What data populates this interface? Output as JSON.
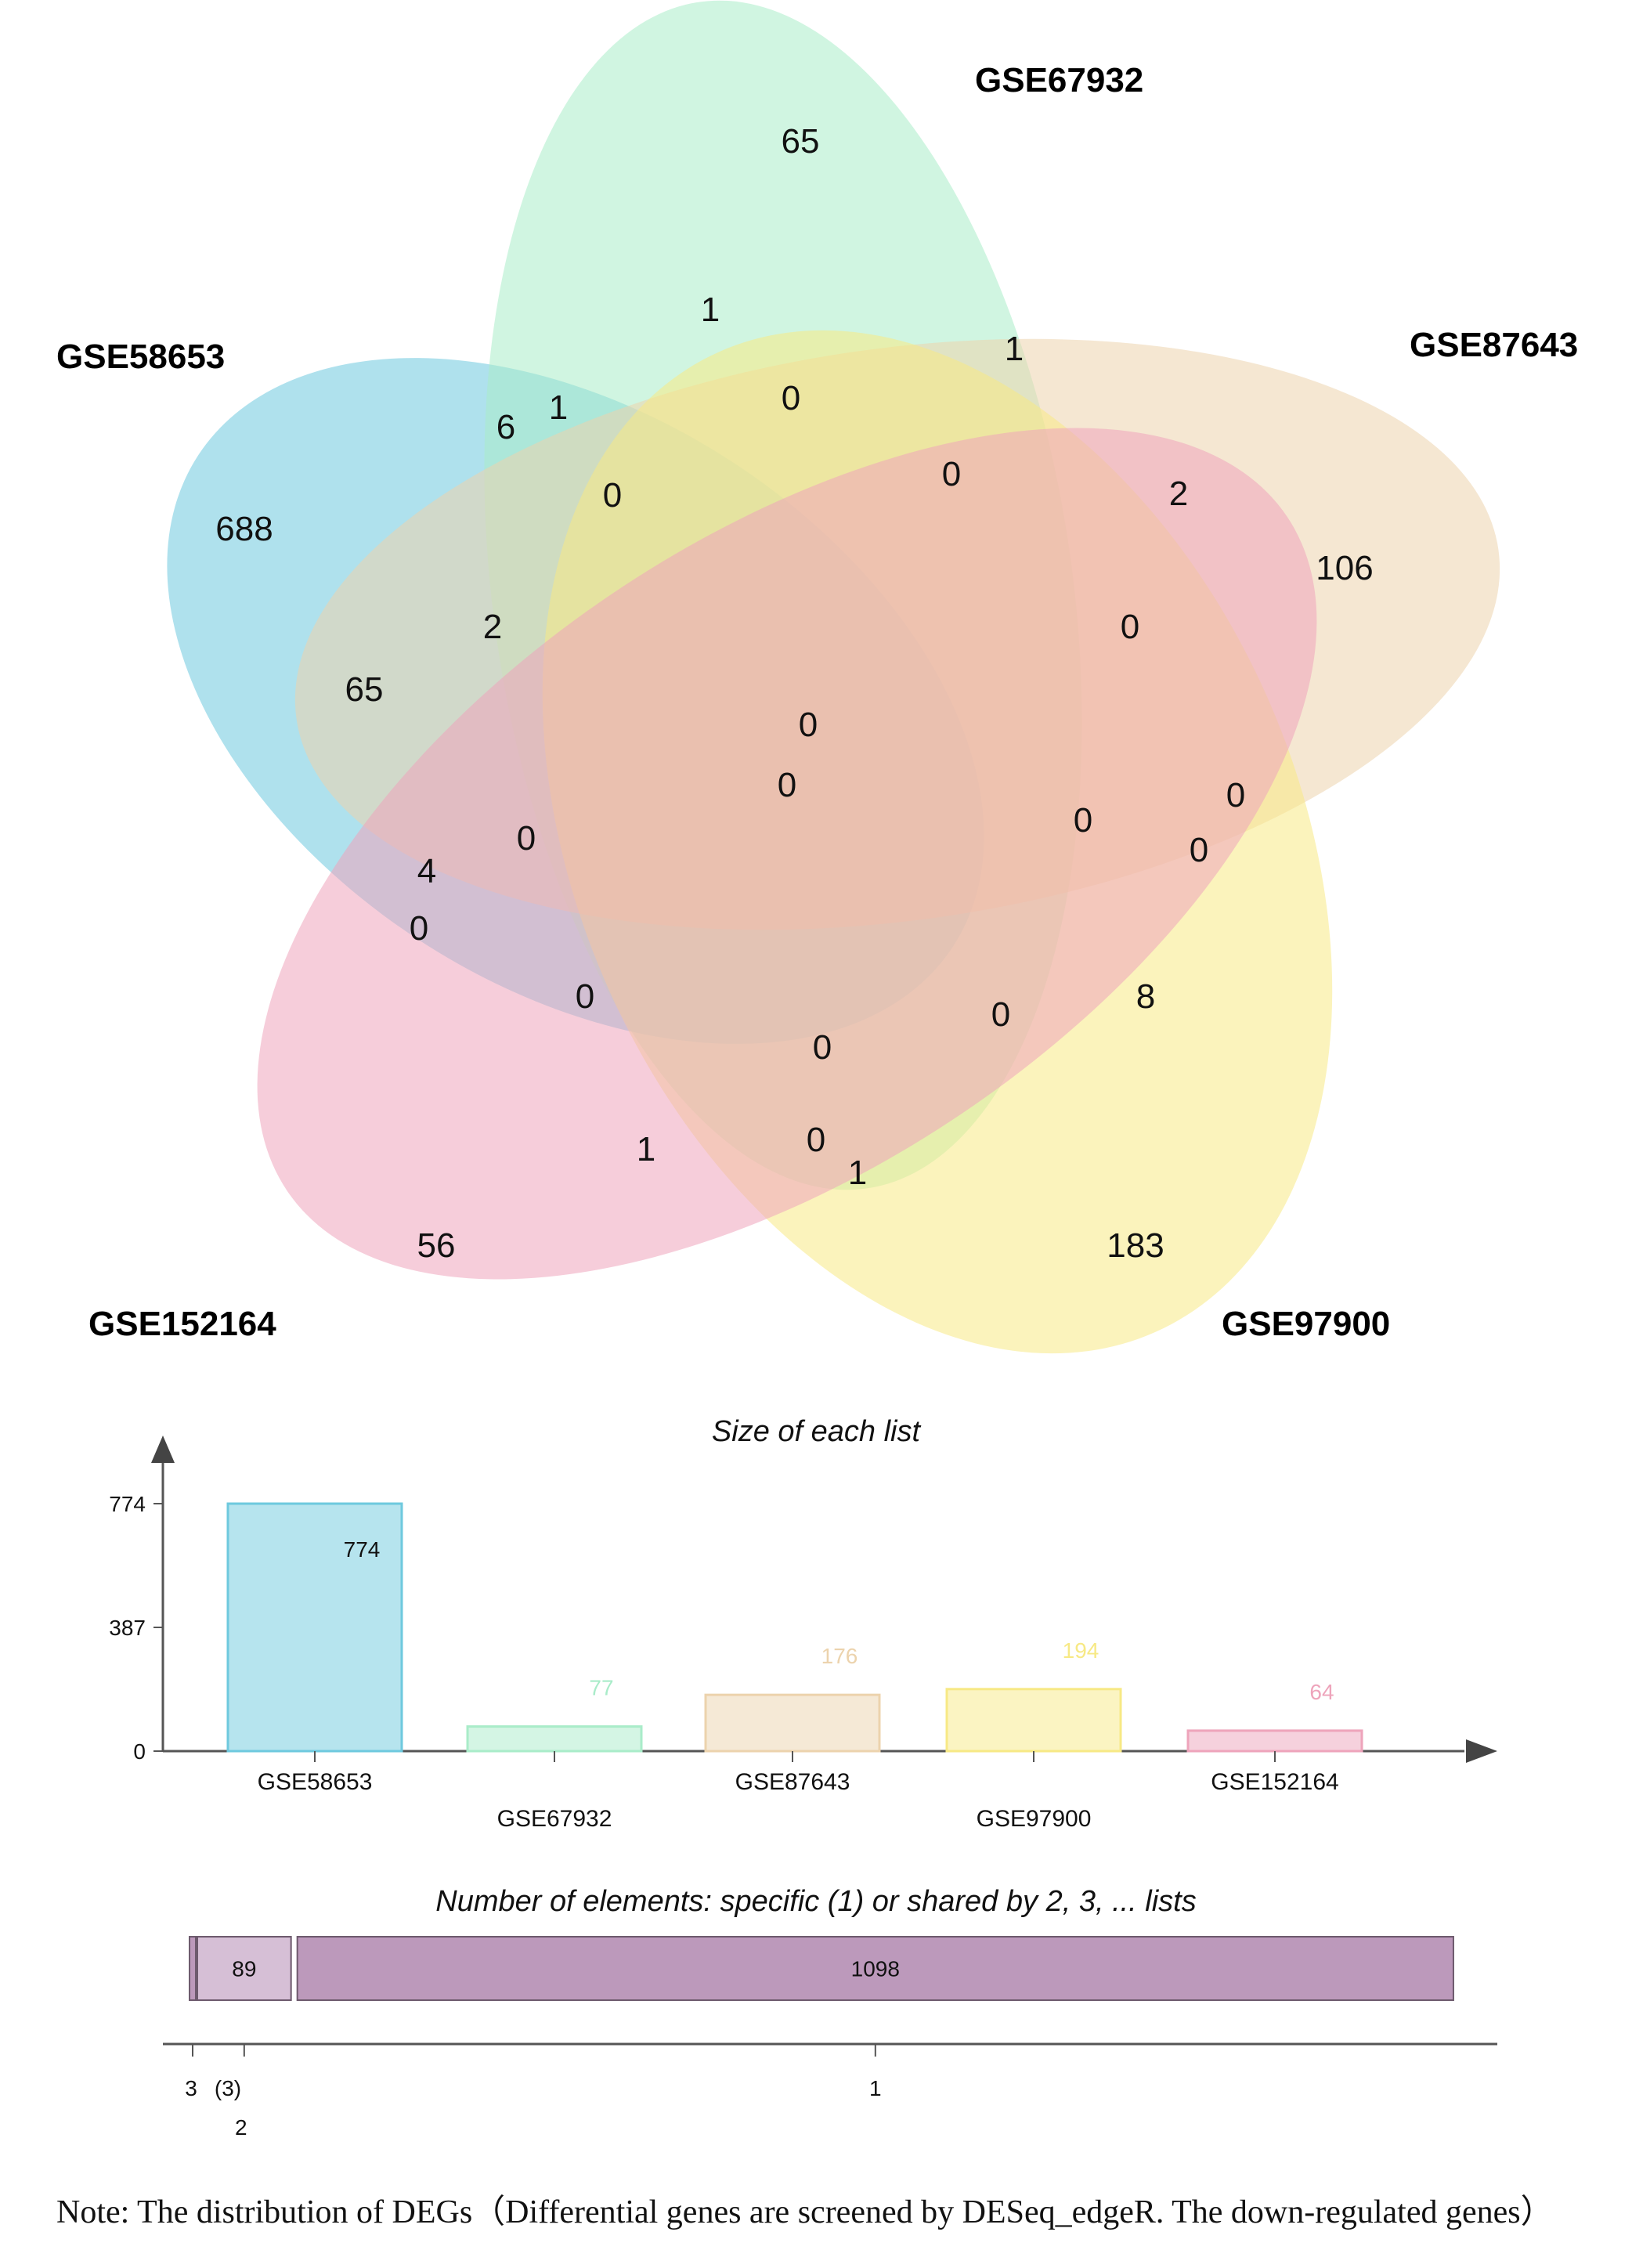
{
  "colors": {
    "GSE58653": "#6ec9de",
    "GSE67932": "#a9ecc9",
    "GSE87643": "#ecd3ad",
    "GSE97900": "#f7e985",
    "GSE152164": "#eea4bb",
    "shared": "#bc99bb",
    "shared_light": "#d6bfd6"
  },
  "chart_data": [
    {
      "type": "venn",
      "sets": [
        {
          "key": "GSE58653",
          "label": "GSE58653"
        },
        {
          "key": "GSE67932",
          "label": "GSE67932"
        },
        {
          "key": "GSE87643",
          "label": "GSE87643"
        },
        {
          "key": "GSE97900",
          "label": "GSE97900"
        },
        {
          "key": "GSE152164",
          "label": "GSE152164"
        }
      ],
      "region_counts": [
        "65",
        "1",
        "1",
        "0",
        "6",
        "1",
        "0",
        "688",
        "0",
        "2",
        "106",
        "2",
        "0",
        "65",
        "0",
        "0",
        "0",
        "0",
        "0",
        "4",
        "0",
        "0",
        "0",
        "8",
        "0",
        "1",
        "0",
        "1",
        "56",
        "183",
        "0"
      ]
    },
    {
      "type": "bar",
      "title": "Size of each list",
      "categories": [
        "GSE58653",
        "GSE67932",
        "GSE87643",
        "GSE97900",
        "GSE152164"
      ],
      "values": [
        774,
        77,
        176,
        194,
        64
      ],
      "value_labels": [
        "774",
        "77",
        "176",
        "194",
        "64"
      ],
      "ylim": [
        0,
        774
      ],
      "yticks": [
        0,
        387,
        774
      ],
      "ytick_labels": [
        "0",
        "387",
        "774"
      ]
    },
    {
      "type": "bar",
      "orientation": "horizontal-stacked",
      "title": "Number of elements: specific (1) or shared by 2, 3, ... lists",
      "segments": [
        {
          "shared_by": "3",
          "value": 3,
          "value_label": ""
        },
        {
          "shared_by": "2",
          "value": 89,
          "value_label": "89"
        },
        {
          "shared_by": "1",
          "value": 1098,
          "value_label": "1098"
        }
      ],
      "tick_labels": [
        "3",
        "(3)",
        "2",
        "1"
      ]
    }
  ],
  "note": "Note: The distribution of DEGs（Differential genes are screened by DESeq_edgeR. The down-regulated genes）"
}
